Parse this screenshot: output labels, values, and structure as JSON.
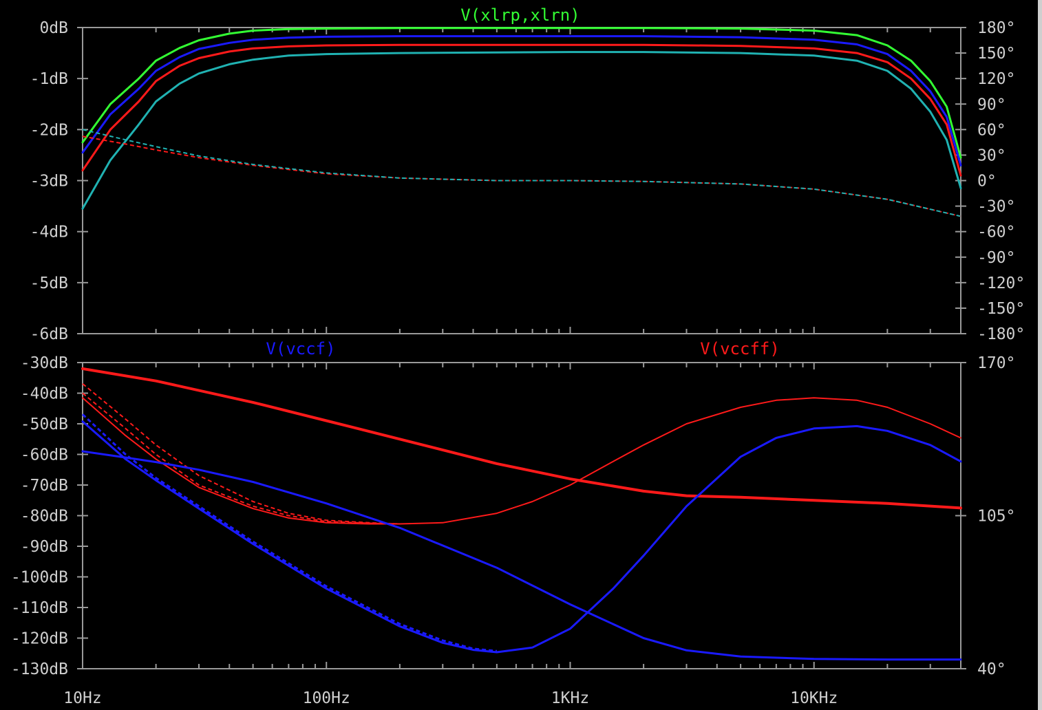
{
  "window": {
    "edge_color": "#cfcfcf"
  },
  "colors": {
    "background": "#000000",
    "axis": "#9a9a9a",
    "text": "#cfcfcf"
  },
  "x_axis": {
    "scale": "log",
    "range": [
      10,
      40000
    ],
    "tick_labels": [
      {
        "x": 10,
        "label": "10Hz"
      },
      {
        "x": 100,
        "label": "100Hz"
      },
      {
        "x": 1000,
        "label": "1KHz"
      },
      {
        "x": 10000,
        "label": "10KHz"
      }
    ]
  },
  "chart_data": [
    {
      "type": "line",
      "title": "V(xlrp,xlrn)",
      "title_color": "#33ff33",
      "grid": false,
      "left_axis": {
        "unit": "dB",
        "ylim": [
          -6,
          0
        ],
        "tick_labels": [
          "0dB",
          "-1dB",
          "-2dB",
          "-3dB",
          "-4dB",
          "-5dB",
          "-6dB"
        ],
        "tick_values": [
          0,
          -1,
          -2,
          -3,
          -4,
          -5,
          -6
        ]
      },
      "right_axis": {
        "unit": "degrees",
        "ylim": [
          -180,
          180
        ],
        "tick_labels": [
          "180°",
          "150°",
          "120°",
          "90°",
          "60°",
          "30°",
          "0°",
          "-30°",
          "-60°",
          "-90°",
          "-120°",
          "-150°",
          "-180°"
        ],
        "tick_values": [
          180,
          150,
          120,
          90,
          60,
          30,
          0,
          -30,
          -60,
          -90,
          -120,
          -150,
          -180
        ]
      },
      "x": [
        10,
        13,
        17,
        20,
        25,
        30,
        40,
        50,
        70,
        100,
        200,
        500,
        1000,
        2000,
        5000,
        10000,
        15000,
        20000,
        25000,
        30000,
        35000,
        40000
      ],
      "series": [
        {
          "color": "#33ff33",
          "axis": "left",
          "style": "solid",
          "values": [
            -2.25,
            -1.5,
            -1.0,
            -0.65,
            -0.4,
            -0.25,
            -0.12,
            -0.06,
            -0.03,
            -0.02,
            -0.01,
            -0.01,
            -0.01,
            -0.01,
            -0.02,
            -0.06,
            -0.15,
            -0.35,
            -0.65,
            -1.05,
            -1.55,
            -2.55
          ]
        },
        {
          "color": "#1a1aff",
          "axis": "left",
          "style": "solid",
          "values": [
            -2.45,
            -1.7,
            -1.2,
            -0.85,
            -0.58,
            -0.42,
            -0.3,
            -0.24,
            -0.2,
            -0.18,
            -0.17,
            -0.17,
            -0.17,
            -0.17,
            -0.19,
            -0.24,
            -0.33,
            -0.52,
            -0.85,
            -1.25,
            -1.75,
            -2.7
          ]
        },
        {
          "color": "#ff1a1a",
          "axis": "left",
          "style": "solid",
          "values": [
            -2.8,
            -2.0,
            -1.45,
            -1.05,
            -0.75,
            -0.6,
            -0.47,
            -0.41,
            -0.37,
            -0.35,
            -0.34,
            -0.34,
            -0.34,
            -0.34,
            -0.36,
            -0.41,
            -0.5,
            -0.68,
            -1.0,
            -1.4,
            -1.9,
            -2.9
          ]
        },
        {
          "color": "#20b2b2",
          "axis": "left",
          "style": "solid",
          "values": [
            -3.55,
            -2.6,
            -1.9,
            -1.45,
            -1.1,
            -0.9,
            -0.72,
            -0.63,
            -0.55,
            -0.52,
            -0.5,
            -0.49,
            -0.48,
            -0.48,
            -0.5,
            -0.55,
            -0.65,
            -0.85,
            -1.2,
            -1.65,
            -2.2,
            -3.15
          ]
        },
        {
          "color": "#ff1a1a",
          "axis": "right",
          "style": "dashed",
          "x": [
            10,
            15,
            20,
            30,
            50,
            100,
            200,
            500,
            1000,
            2000,
            5000,
            10000,
            20000,
            40000
          ],
          "values": [
            52,
            43,
            36,
            27,
            18,
            8,
            3,
            0,
            0,
            -1,
            -4,
            -10,
            -22,
            -42
          ]
        },
        {
          "color": "#20b2b2",
          "axis": "right",
          "style": "dashed",
          "x": [
            10,
            15,
            20,
            30,
            50,
            100,
            200,
            500,
            1000,
            2000,
            5000,
            10000,
            20000,
            40000
          ],
          "values": [
            60,
            48,
            40,
            29,
            19,
            9,
            3,
            0,
            0,
            -1,
            -4,
            -10,
            -22,
            -42
          ]
        }
      ]
    },
    {
      "type": "line",
      "title_left": "V(vccf)",
      "title_left_color": "#1a1aff",
      "title_right": "V(vccff)",
      "title_right_color": "#ff1a1a",
      "grid": false,
      "left_axis": {
        "unit": "dB",
        "ylim": [
          -130,
          -30
        ],
        "tick_labels": [
          "-30dB",
          "-40dB",
          "-50dB",
          "-60dB",
          "-70dB",
          "-80dB",
          "-90dB",
          "-100dB",
          "-110dB",
          "-120dB",
          "-130dB"
        ],
        "tick_values": [
          -30,
          -40,
          -50,
          -60,
          -70,
          -80,
          -90,
          -100,
          -110,
          -120,
          -130
        ]
      },
      "right_axis": {
        "unit": "degrees",
        "ylim": [
          40,
          170
        ],
        "tick_labels": [
          "170°",
          "105°",
          "40°"
        ],
        "tick_values": [
          170,
          105,
          40
        ]
      },
      "series": [
        {
          "color": "#ff1a1a",
          "axis": "left",
          "style": "solid",
          "width": 4,
          "x": [
            10,
            20,
            50,
            100,
            200,
            500,
            1000,
            2000,
            3000,
            5000,
            10000,
            20000,
            40000
          ],
          "values": [
            -32,
            -36,
            -43,
            -49,
            -55,
            -63,
            -68,
            -72,
            -73.5,
            -74,
            -75,
            -76,
            -77.5
          ]
        },
        {
          "color": "#ff1a1a",
          "axis": "right",
          "style": "solid",
          "width": 2,
          "x": [
            10,
            15,
            20,
            30,
            50,
            70,
            100,
            150,
            200,
            300,
            500,
            700,
            1000,
            1500,
            2000,
            3000,
            5000,
            7000,
            10000,
            15000,
            20000,
            30000,
            40000
          ],
          "values": [
            155,
            139,
            129,
            117,
            108,
            104,
            102,
            101.5,
            101.5,
            102,
            106,
            111,
            118,
            128,
            135,
            144,
            151,
            154,
            155,
            154,
            151,
            144,
            138
          ]
        },
        {
          "color": "#ff1a1a",
          "axis": "right",
          "style": "dashed",
          "width": 2,
          "x": [
            10,
            15,
            20,
            30,
            50,
            70,
            100,
            150,
            200
          ],
          "values": [
            161,
            146,
            135,
            122,
            111,
            106,
            103,
            102,
            101.5
          ]
        },
        {
          "color": "#ff1a1a",
          "axis": "right",
          "style": "dashed",
          "width": 2,
          "x": [
            10,
            15,
            20,
            30,
            50,
            70,
            100,
            150,
            200
          ],
          "values": [
            157,
            142,
            131,
            118,
            109,
            105,
            102.5,
            101.8,
            101.5
          ]
        },
        {
          "color": "#1a1aff",
          "axis": "left",
          "style": "solid",
          "width": 3,
          "x": [
            10,
            15,
            20,
            30,
            50,
            100,
            200,
            500,
            1000,
            2000,
            3000,
            5000,
            10000,
            20000,
            40000
          ],
          "values": [
            -59,
            -61,
            -62.5,
            -65,
            -69,
            -76,
            -84,
            -97,
            -109,
            -120,
            -124,
            -126,
            -126.8,
            -127,
            -127
          ]
        },
        {
          "color": "#1a1aff",
          "axis": "right",
          "style": "solid",
          "width": 3,
          "x": [
            10,
            15,
            20,
            30,
            50,
            100,
            200,
            300,
            400,
            500,
            700,
            1000,
            1500,
            2000,
            3000,
            5000,
            7000,
            10000,
            15000,
            20000,
            30000,
            40000
          ],
          "values": [
            145,
            129,
            120,
            108,
            93,
            74,
            58,
            51,
            48,
            47,
            49,
            57,
            74,
            88,
            109,
            130,
            138,
            142,
            143,
            141,
            135,
            128
          ]
        },
        {
          "color": "#1a1aff",
          "axis": "right",
          "style": "dashed",
          "width": 3,
          "x": [
            10,
            15,
            20,
            30,
            50,
            100,
            200,
            300,
            400,
            500
          ],
          "values": [
            148,
            131,
            121,
            109,
            94,
            75,
            59,
            52,
            48.5,
            47.5
          ]
        }
      ]
    }
  ]
}
